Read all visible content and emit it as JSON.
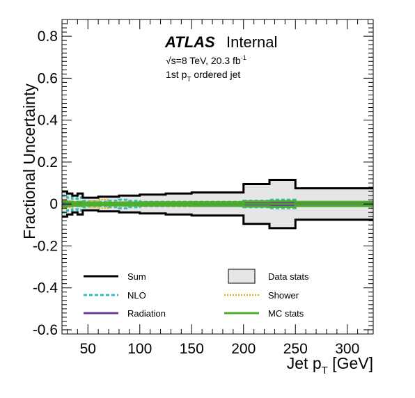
{
  "chart_data": {
    "type": "area",
    "title": "",
    "annotations": {
      "experiment": "ATLAS",
      "status": "Internal",
      "energy_line": "√s=8 TeV, 20.3 fb",
      "lumi_sup": "-1",
      "selection_main": "1st p",
      "selection_sub": "T",
      "selection_rest": " ordered jet"
    },
    "xlabel": "Jet p",
    "xlabel_sub": "T",
    "xlabel_unit": " [GeV]",
    "ylabel": "Fractional Uncertainty",
    "xlim": [
      25,
      325
    ],
    "ylim": [
      -0.62,
      0.88
    ],
    "xticks": [
      50,
      100,
      150,
      200,
      250,
      300
    ],
    "yticks": [
      -0.6,
      -0.4,
      -0.2,
      0,
      0.2,
      0.4,
      0.6,
      0.8
    ],
    "ytick_labels": [
      "-0.6",
      "-0.4",
      "-0.2",
      "0",
      "0.2",
      "0.4",
      "0.6",
      "0.8"
    ],
    "bin_edges": [
      25,
      30,
      35,
      40,
      45,
      50,
      60,
      70,
      80,
      90,
      100,
      125,
      150,
      200,
      225,
      250,
      325
    ],
    "series": [
      {
        "name": "Sum",
        "style": "solid",
        "color": "#000000",
        "values": [
          0.06,
          0.05,
          0.04,
          0.05,
          0.03,
          0.03,
          0.035,
          0.035,
          0.04,
          0.04,
          0.045,
          0.05,
          0.055,
          0.095,
          0.115,
          0.075
        ]
      },
      {
        "name": "Data stats",
        "style": "fill",
        "color": "#e6e6e6",
        "values": [
          0.06,
          0.05,
          0.04,
          0.05,
          0.03,
          0.03,
          0.035,
          0.035,
          0.04,
          0.04,
          0.045,
          0.05,
          0.055,
          0.095,
          0.115,
          0.075
        ]
      },
      {
        "name": "NLO",
        "style": "dashed",
        "color": "#33bbbb",
        "values": [
          0.04,
          0.03,
          0.025,
          0.03,
          0.015,
          0.012,
          0.01,
          0.015,
          0.02,
          0.015,
          0.01,
          0.01,
          0.01,
          0.015,
          0.02,
          0.005
        ]
      },
      {
        "name": "Shower",
        "style": "dotted",
        "color": "#e6a800",
        "values": [
          0.02,
          0.015,
          0.01,
          0.01,
          0.008,
          0.015,
          0.02,
          0.01,
          0.01,
          0.008,
          0.008,
          0.01,
          0.01,
          0.01,
          0.012,
          0.005
        ]
      },
      {
        "name": "Radiation",
        "style": "solid",
        "color": "#6a3d9a",
        "values": [
          0.003,
          0.003,
          0.003,
          0.003,
          0.003,
          0.003,
          0.003,
          0.003,
          0.003,
          0.003,
          0.003,
          0.003,
          0.005,
          0.006,
          0.005,
          0.003
        ]
      },
      {
        "name": "MC stats",
        "style": "solid",
        "color": "#4daf2a",
        "values": [
          0.012,
          0.01,
          0.008,
          0.01,
          0.006,
          0.006,
          0.006,
          0.006,
          0.007,
          0.007,
          0.008,
          0.008,
          0.009,
          0.012,
          0.014,
          0.01
        ]
      }
    ],
    "legend": {
      "placement": "bottom",
      "left": [
        "Sum",
        "NLO",
        "Radiation"
      ],
      "right": [
        "Data stats",
        "Shower",
        "MC stats"
      ]
    },
    "grid": false
  }
}
